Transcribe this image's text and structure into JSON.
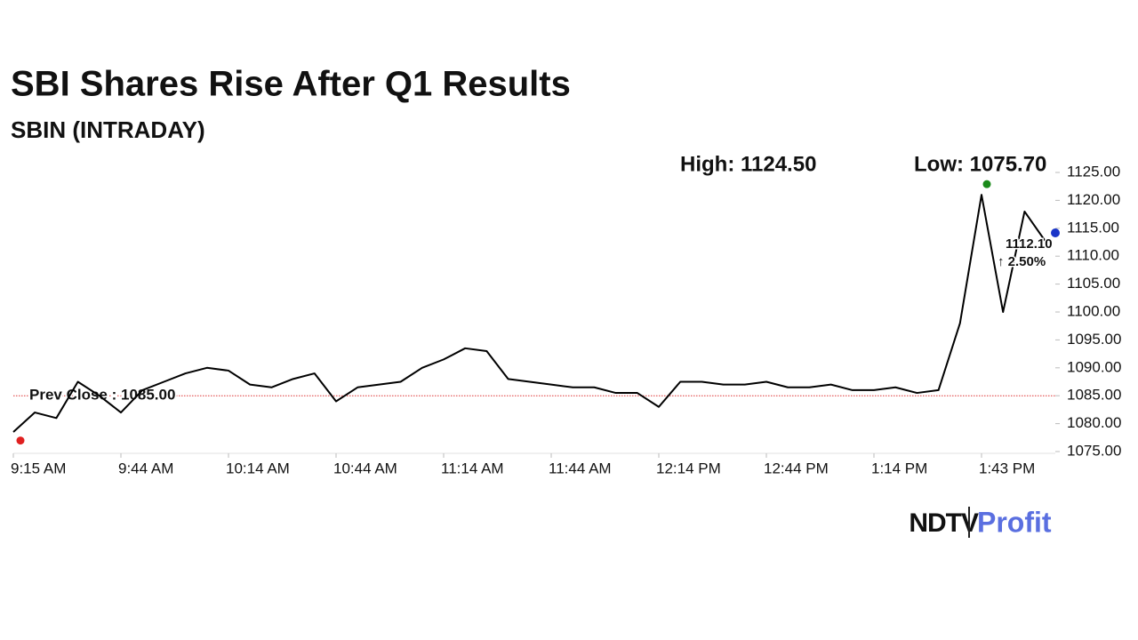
{
  "chart_data": {
    "type": "line",
    "title": "SBI Shares Rise After Q1 Results",
    "subtitle": "SBIN (INTRADAY)",
    "high": {
      "value": 1124.5,
      "label": "High: 1124.50"
    },
    "low": {
      "value": 1075.7,
      "label": "Low: 1075.70"
    },
    "prev_close": {
      "value": 1085,
      "label": "Prev Close : 1085.00"
    },
    "last": {
      "value": 1112.1,
      "label": "1112.10"
    },
    "change": {
      "value": 2.5,
      "label": "↑ 2.50%"
    },
    "categories": [
      "9:15 AM",
      null,
      null,
      null,
      null,
      "9:44 AM",
      null,
      null,
      null,
      null,
      "10:14 AM",
      null,
      null,
      null,
      null,
      "10:44 AM",
      null,
      null,
      null,
      null,
      "11:14 AM",
      null,
      null,
      null,
      null,
      "11:44 AM",
      null,
      null,
      null,
      null,
      "12:14 PM",
      null,
      null,
      null,
      null,
      "12:44 PM",
      null,
      null,
      null,
      null,
      "1:14 PM",
      null,
      null,
      null,
      null,
      "1:43 PM",
      null,
      null,
      null
    ],
    "series": [
      {
        "name": "SBIN",
        "color": "#000000",
        "values": [
          1078.5,
          1082,
          1081,
          1087.5,
          1085,
          1082,
          1086,
          1087.5,
          1089,
          1090,
          1089.5,
          1087,
          1086.5,
          1088,
          1089,
          1084,
          1086.5,
          1087,
          1087.5,
          1090,
          1091.5,
          1093.5,
          1093,
          1088,
          1087.5,
          1087,
          1086.5,
          1086.5,
          1085.5,
          1085.5,
          1083,
          1087.5,
          1087.5,
          1087,
          1087,
          1087.5,
          1086.5,
          1086.5,
          1087,
          1086,
          1086,
          1086.5,
          1085.5,
          1086,
          1098,
          1121,
          1100,
          1118,
          1112.5
        ]
      }
    ],
    "ylim": [
      1075,
      1125
    ],
    "yticks": [
      {
        "value": 1075,
        "label": "1075.00"
      },
      {
        "value": 1080,
        "label": "1080.00"
      },
      {
        "value": 1085,
        "label": "1085.00"
      },
      {
        "value": 1090,
        "label": "1090.00"
      },
      {
        "value": 1095,
        "label": "1095.00"
      },
      {
        "value": 1100,
        "label": "1100.00"
      },
      {
        "value": 1105,
        "label": "1105.00"
      },
      {
        "value": 1110,
        "label": "1110.00"
      },
      {
        "value": 1115,
        "label": "1115.00"
      },
      {
        "value": 1120,
        "label": "1120.00"
      },
      {
        "value": 1125,
        "label": "1125.00"
      }
    ],
    "grid": false
  },
  "logo": {
    "brand": "NDTV",
    "product": "Profit"
  }
}
